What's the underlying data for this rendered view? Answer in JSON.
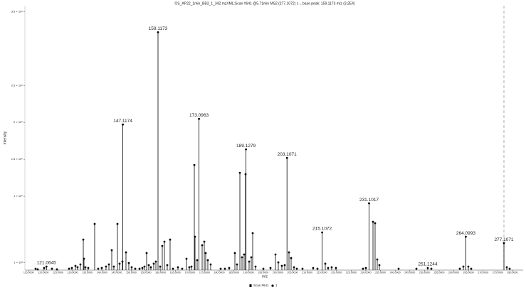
{
  "chart_data": {
    "type": "stick",
    "title": "OS_AP22_1min_BB3_1_342.mzXML:Scan #641 @5.71min MS2 (277.1072) c -, base peak: 159.1173 m/z (3.2E4)",
    "xlabel": "m/z",
    "ylabel": "Intensity",
    "xlim": [
      113.72,
      283.66
    ],
    "ylim": [
      0,
      35800
    ],
    "xticks": [
      {
        "value": 115,
        "label": "115.0000"
      },
      {
        "value": 120,
        "label": "120.0000"
      },
      {
        "value": 125,
        "label": "125.0000"
      },
      {
        "value": 130,
        "label": "130.0000"
      },
      {
        "value": 135,
        "label": "135.0000"
      },
      {
        "value": 140,
        "label": "140.0000"
      },
      {
        "value": 145,
        "label": "145.0000"
      },
      {
        "value": 150,
        "label": "150.0000"
      },
      {
        "value": 155,
        "label": "155.0000"
      },
      {
        "value": 160,
        "label": "160.0000"
      },
      {
        "value": 165,
        "label": "165.0000"
      },
      {
        "value": 170,
        "label": "170.0000"
      },
      {
        "value": 175,
        "label": "175.0000"
      },
      {
        "value": 180,
        "label": "180.0000"
      },
      {
        "value": 185,
        "label": "185.0000"
      },
      {
        "value": 190,
        "label": "190.0000"
      },
      {
        "value": 195,
        "label": "195.0000"
      },
      {
        "value": 200,
        "label": "200.0000"
      },
      {
        "value": 205,
        "label": "205.0000"
      },
      {
        "value": 210,
        "label": "210.0000"
      },
      {
        "value": 215,
        "label": "215.0000"
      },
      {
        "value": 220,
        "label": "220.0000"
      },
      {
        "value": 225,
        "label": "225.0000"
      },
      {
        "value": 230,
        "label": "230.0000"
      },
      {
        "value": 235,
        "label": "235.0000"
      },
      {
        "value": 240,
        "label": "240.0000"
      },
      {
        "value": 245,
        "label": "245.0000"
      },
      {
        "value": 250,
        "label": "250.0000"
      },
      {
        "value": 255,
        "label": "255.0000"
      },
      {
        "value": 260,
        "label": "260.0000"
      },
      {
        "value": 265,
        "label": "265.0000"
      },
      {
        "value": 270,
        "label": "270.0000"
      },
      {
        "value": 275,
        "label": "275.0000"
      },
      {
        "value": 280,
        "label": "280.0000"
      }
    ],
    "yticks": [
      {
        "value": 1000,
        "label": "1 × 10³"
      },
      {
        "value": 10000,
        "label": "1 × 10⁴"
      },
      {
        "value": 15000,
        "label": "1.5 × 10⁴"
      },
      {
        "value": 20000,
        "label": "2 × 10⁴"
      },
      {
        "value": 25000,
        "label": "2.5 × 10⁴"
      },
      {
        "value": 35000,
        "label": "3.5 × 10⁴"
      }
    ],
    "series": [
      {
        "name": "Scan #641",
        "color": "#000000",
        "x": [
          117.36,
          118.09,
          120.27,
          121.0645,
          122.94,
          124.64,
          128.77,
          129.74,
          130.95,
          131.68,
          132.65,
          133.63,
          133.87,
          134.35,
          135.32,
          137.51,
          138.72,
          139.94,
          141.39,
          142.37,
          143.34,
          144.06,
          145.28,
          146.01,
          146.98,
          147.1174,
          148.19,
          149.16,
          150.13,
          151.35,
          152.81,
          153.78,
          154.5,
          155.23,
          155.96,
          156.69,
          157.66,
          158.39,
          159.1173,
          159.85,
          160.57,
          161.3,
          162.27,
          163.24,
          164.22,
          165.92,
          167.37,
          168.83,
          169.8,
          170.53,
          171.5,
          171.74,
          172.47,
          173.0963,
          174.17,
          174.9,
          175.38,
          176.11,
          177.08,
          180.48,
          181.94,
          183.39,
          185.34,
          186.07,
          187.04,
          187.77,
          188.49,
          188.98,
          189.1279,
          190.19,
          190.92,
          191.41,
          192.38,
          195.05,
          197.48,
          199.18,
          200.15,
          201.36,
          202.33,
          203.1071,
          203.79,
          204.52,
          205.49,
          206.46,
          208.4,
          212.04,
          213.5,
          215.1072,
          216.17,
          217.14,
          218.35,
          219.81,
          229.04,
          230.01,
          231.1017,
          232.44,
          233.16,
          233.89,
          234.62,
          241.18,
          247.25,
          251.1244,
          252.35,
          262.06,
          263.27,
          264.0993,
          264.97,
          265.94,
          277.1071,
          278.08,
          279.05
        ],
        "values": [
          190,
          100,
          290,
          480,
          190,
          100,
          190,
          290,
          580,
          380,
          770,
          4130,
          1540,
          380,
          290,
          6250,
          190,
          290,
          480,
          770,
          2690,
          480,
          6250,
          870,
          1150,
          19710,
          2400,
          960,
          380,
          190,
          190,
          290,
          480,
          2310,
          670,
          380,
          870,
          1150,
          32200,
          480,
          3270,
          3850,
          670,
          4130,
          190,
          380,
          190,
          1540,
          380,
          480,
          14230,
          4520,
          1350,
          20480,
          3370,
          3850,
          2310,
          1350,
          770,
          190,
          190,
          290,
          2310,
          770,
          13170,
          1730,
          2120,
          12980,
          16350,
          1150,
          1730,
          5000,
          480,
          190,
          290,
          2120,
          1050,
          580,
          670,
          15190,
          2400,
          1630,
          380,
          190,
          190,
          290,
          190,
          5100,
          870,
          290,
          380,
          290,
          190,
          290,
          9040,
          6540,
          6350,
          1440,
          670,
          190,
          190,
          290,
          190,
          190,
          480,
          4520,
          480,
          190,
          3650,
          380,
          190
        ]
      }
    ],
    "annotations": [
      121.0645,
      147.1174,
      159.1173,
      173.0963,
      189.1279,
      203.1071,
      215.1072,
      231.1017,
      251.1244,
      264.0993,
      277.1071
    ],
    "vline": {
      "name": "1",
      "x": 277.1072,
      "color": "#999999"
    }
  }
}
